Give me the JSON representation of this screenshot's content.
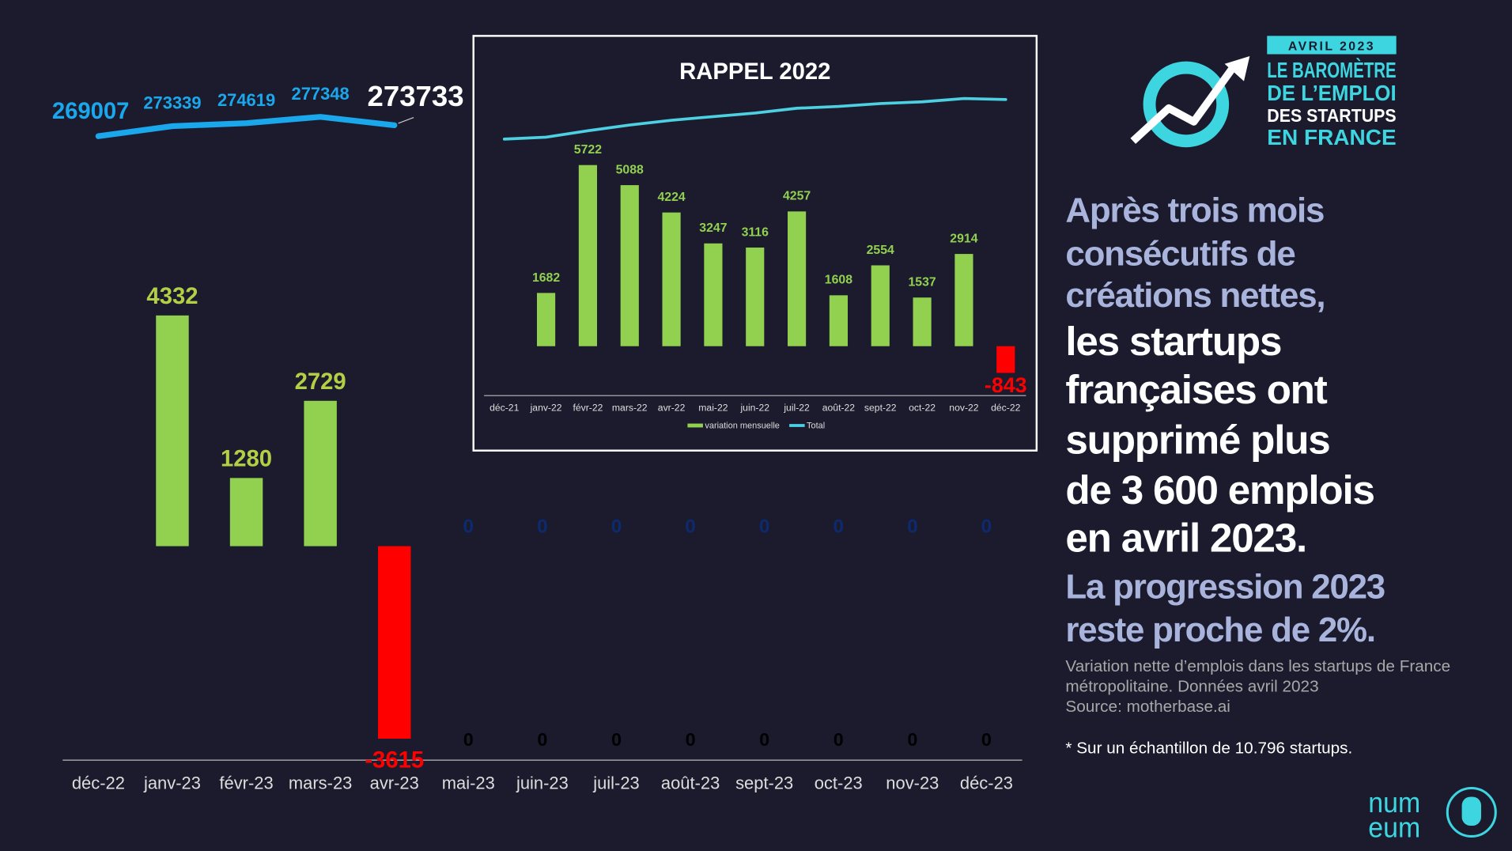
{
  "chart_data": [
    {
      "type": "bar",
      "categories": [
        "déc-22",
        "janv-23",
        "févr-23",
        "mars-23",
        "avr-23",
        "mai-23",
        "juin-23",
        "juil-23",
        "août-23",
        "sept-23",
        "oct-23",
        "nov-23",
        "déc-23"
      ],
      "series": [
        {
          "type": "bar",
          "color": "#92d050",
          "negative_color": "#ff0000",
          "label_color": "#b3cf45",
          "values": [
            null,
            4332,
            1280,
            2729,
            -3615,
            0,
            0,
            0,
            0,
            0,
            0,
            0,
            0
          ]
        },
        {
          "type": "line",
          "axis": "y2",
          "color": "#1aa7ec",
          "values": [
            269007,
            273339,
            274619,
            277348,
            273733,
            null,
            null,
            null,
            null,
            null,
            null,
            null,
            null
          ]
        },
        {
          "type": "label",
          "color": "#0d2a6e",
          "values": [
            null,
            null,
            null,
            null,
            null,
            0,
            0,
            0,
            0,
            0,
            0,
            0,
            0
          ]
        }
      ],
      "ylim": [
        -4000,
        5000
      ],
      "y2lim": [
        265000,
        280000
      ]
    },
    {
      "type": "bar",
      "title": "RAPPEL 2022",
      "categories": [
        "déc-21",
        "janv-22",
        "févr-22",
        "mars-22",
        "avr-22",
        "mai-22",
        "juin-22",
        "juil-22",
        "août-22",
        "sept-22",
        "oct-22",
        "nov-22",
        "déc-22"
      ],
      "series": [
        {
          "type": "bar",
          "name": "variation mensuelle",
          "color": "#92d050",
          "negative_color": "#ff0000",
          "label_color": "#92d050",
          "values": [
            null,
            1682,
            5722,
            5088,
            4224,
            3247,
            3116,
            4257,
            1608,
            2554,
            1537,
            2914,
            -843
          ]
        },
        {
          "type": "line",
          "name": "Total",
          "axis": "y2",
          "color": "#4dd0e1",
          "values": [
            233901,
            235583,
            241305,
            246393,
            250617,
            253864,
            256980,
            261237,
            262845,
            265399,
            266936,
            269850,
            269007
          ]
        }
      ],
      "ylim": [
        -1500,
        7000
      ],
      "y2lim": [
        230000,
        270000
      ],
      "legend": "bottom"
    }
  ],
  "badge": "AVRIL 2023",
  "logo_lines": [
    "LE BAROMÈTRE",
    "DE L’EMPLOI",
    "DES STARTUPS",
    "EN FRANCE"
  ],
  "headline": [
    {
      "text": "Après trois mois",
      "style": "muted"
    },
    {
      "text": "consécutifs de",
      "style": "muted"
    },
    {
      "text": "créations nettes,",
      "style": "muted"
    },
    {
      "text": "les startups",
      "style": "strong"
    },
    {
      "text": "françaises ont",
      "style": "strong"
    },
    {
      "text": "supprimé plus",
      "style": "strong"
    },
    {
      "text": "de 3 600 emplois",
      "style": "strong"
    },
    {
      "text": "en avril 2023.",
      "style": "strong"
    },
    {
      "text": "La progression 2023",
      "style": "muted"
    },
    {
      "text": "reste proche de 2%.",
      "style": "muted"
    }
  ],
  "source_lines": [
    "Variation nette d’emplois dans les startups de France",
    "métropolitaine. Données avril 2023",
    "Source: motherbase.ai"
  ],
  "footnote": "* Sur un échantillon de 10.796 startups.",
  "brand_lines": [
    "num",
    "eum"
  ]
}
